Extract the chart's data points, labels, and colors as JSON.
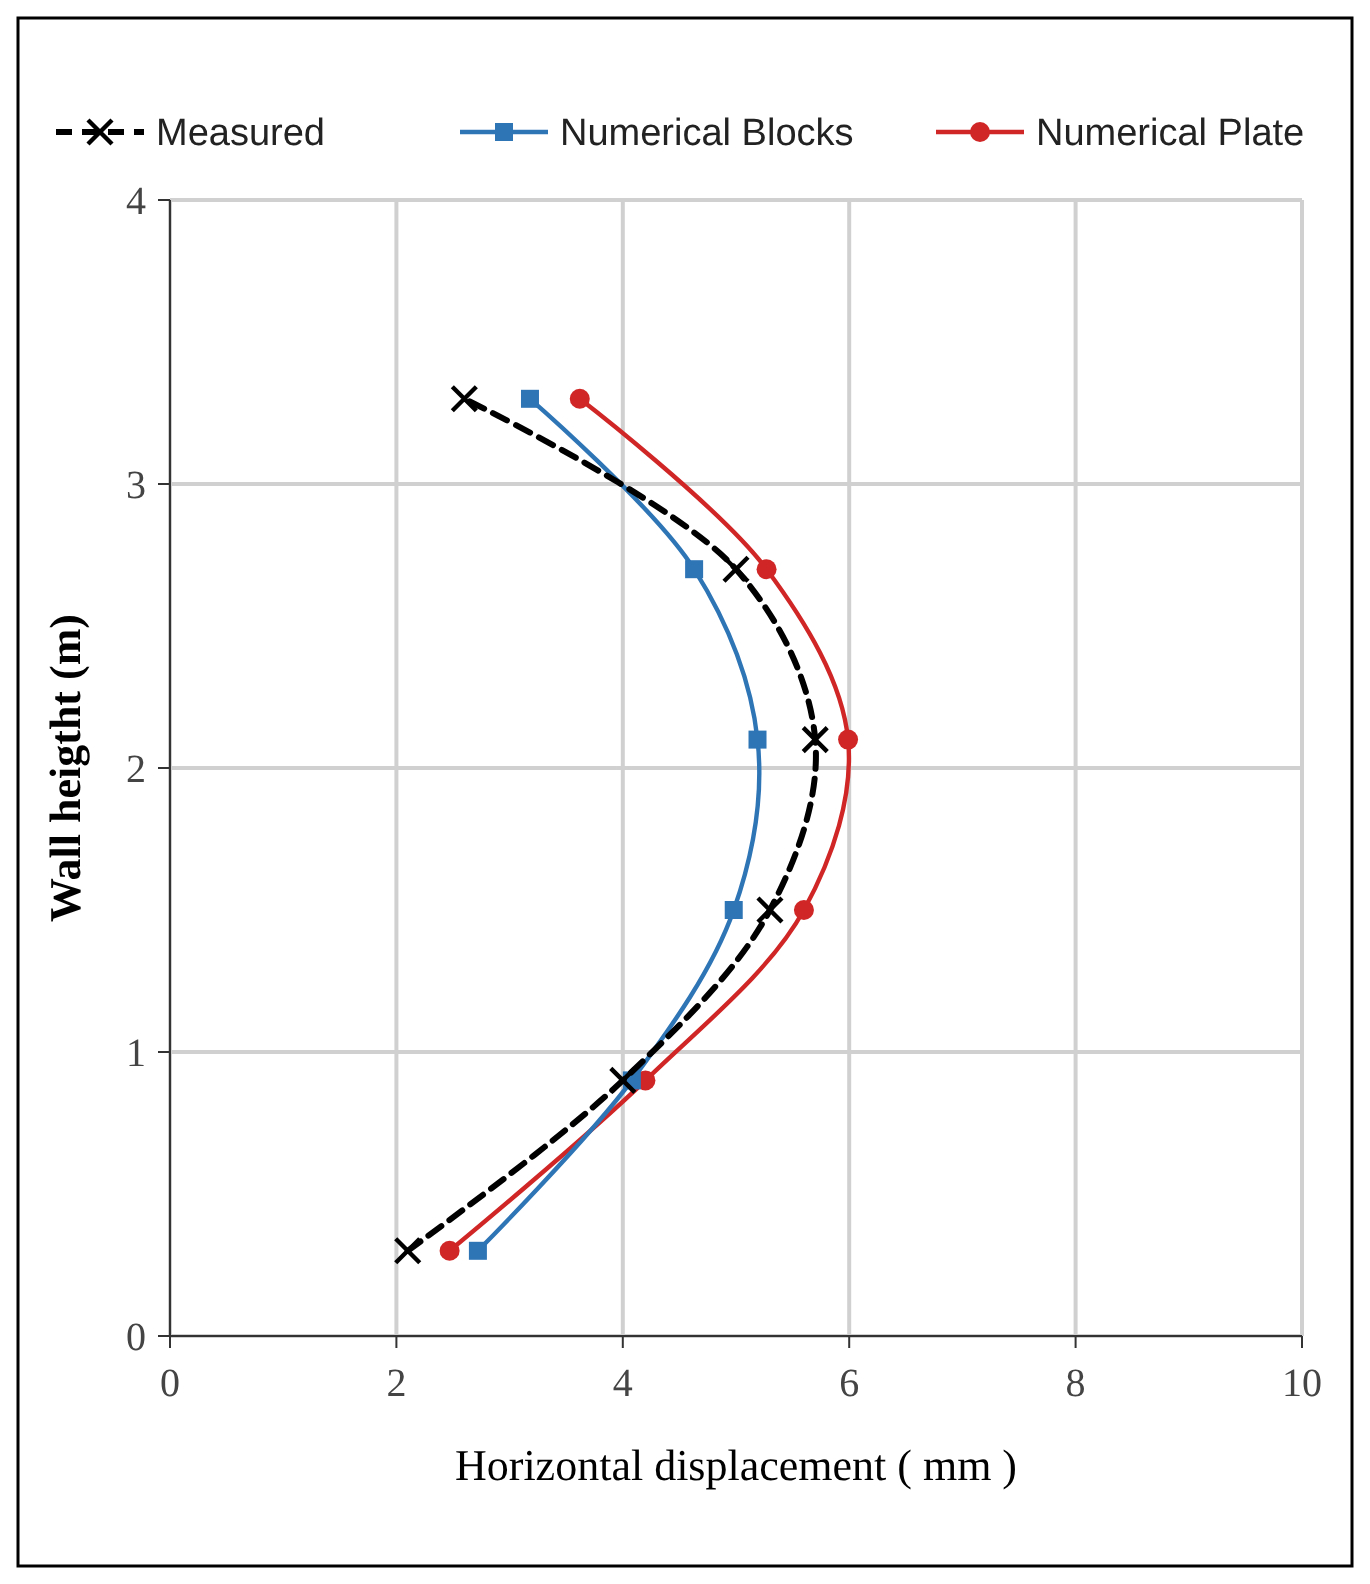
{
  "chart_data": {
    "type": "line",
    "xlabel": "Horizontal displacement ( mm )",
    "ylabel": "Wall heigtht (m)",
    "xlim": [
      0,
      10
    ],
    "xticks": [
      0,
      2,
      4,
      6,
      8,
      10
    ],
    "ylim": [
      0,
      4
    ],
    "yticks": [
      0,
      1,
      2,
      3,
      4
    ],
    "grid": true,
    "legend": "top",
    "series": [
      {
        "name": "Measured",
        "color": "#000000",
        "marker": "cross",
        "line_style": "dashed",
        "x": [
          2.1,
          4.0,
          5.3,
          5.7,
          5.0,
          2.6
        ],
        "values": [
          0.3,
          0.9,
          1.5,
          2.1,
          2.7,
          3.3
        ]
      },
      {
        "name": "Numerical Blocks",
        "color": "#2e75b6",
        "marker": "square",
        "line_style": "solid",
        "x": [
          2.72,
          4.08,
          4.98,
          5.19,
          4.63,
          3.18
        ],
        "values": [
          0.3,
          0.9,
          1.5,
          2.1,
          2.7,
          3.3
        ]
      },
      {
        "name": "Numerical Plate",
        "color": "#d02626",
        "marker": "circle",
        "line_style": "solid",
        "x": [
          2.47,
          4.2,
          5.6,
          5.99,
          5.27,
          3.62
        ],
        "values": [
          0.3,
          0.9,
          1.5,
          2.1,
          2.7,
          3.3
        ]
      }
    ]
  }
}
